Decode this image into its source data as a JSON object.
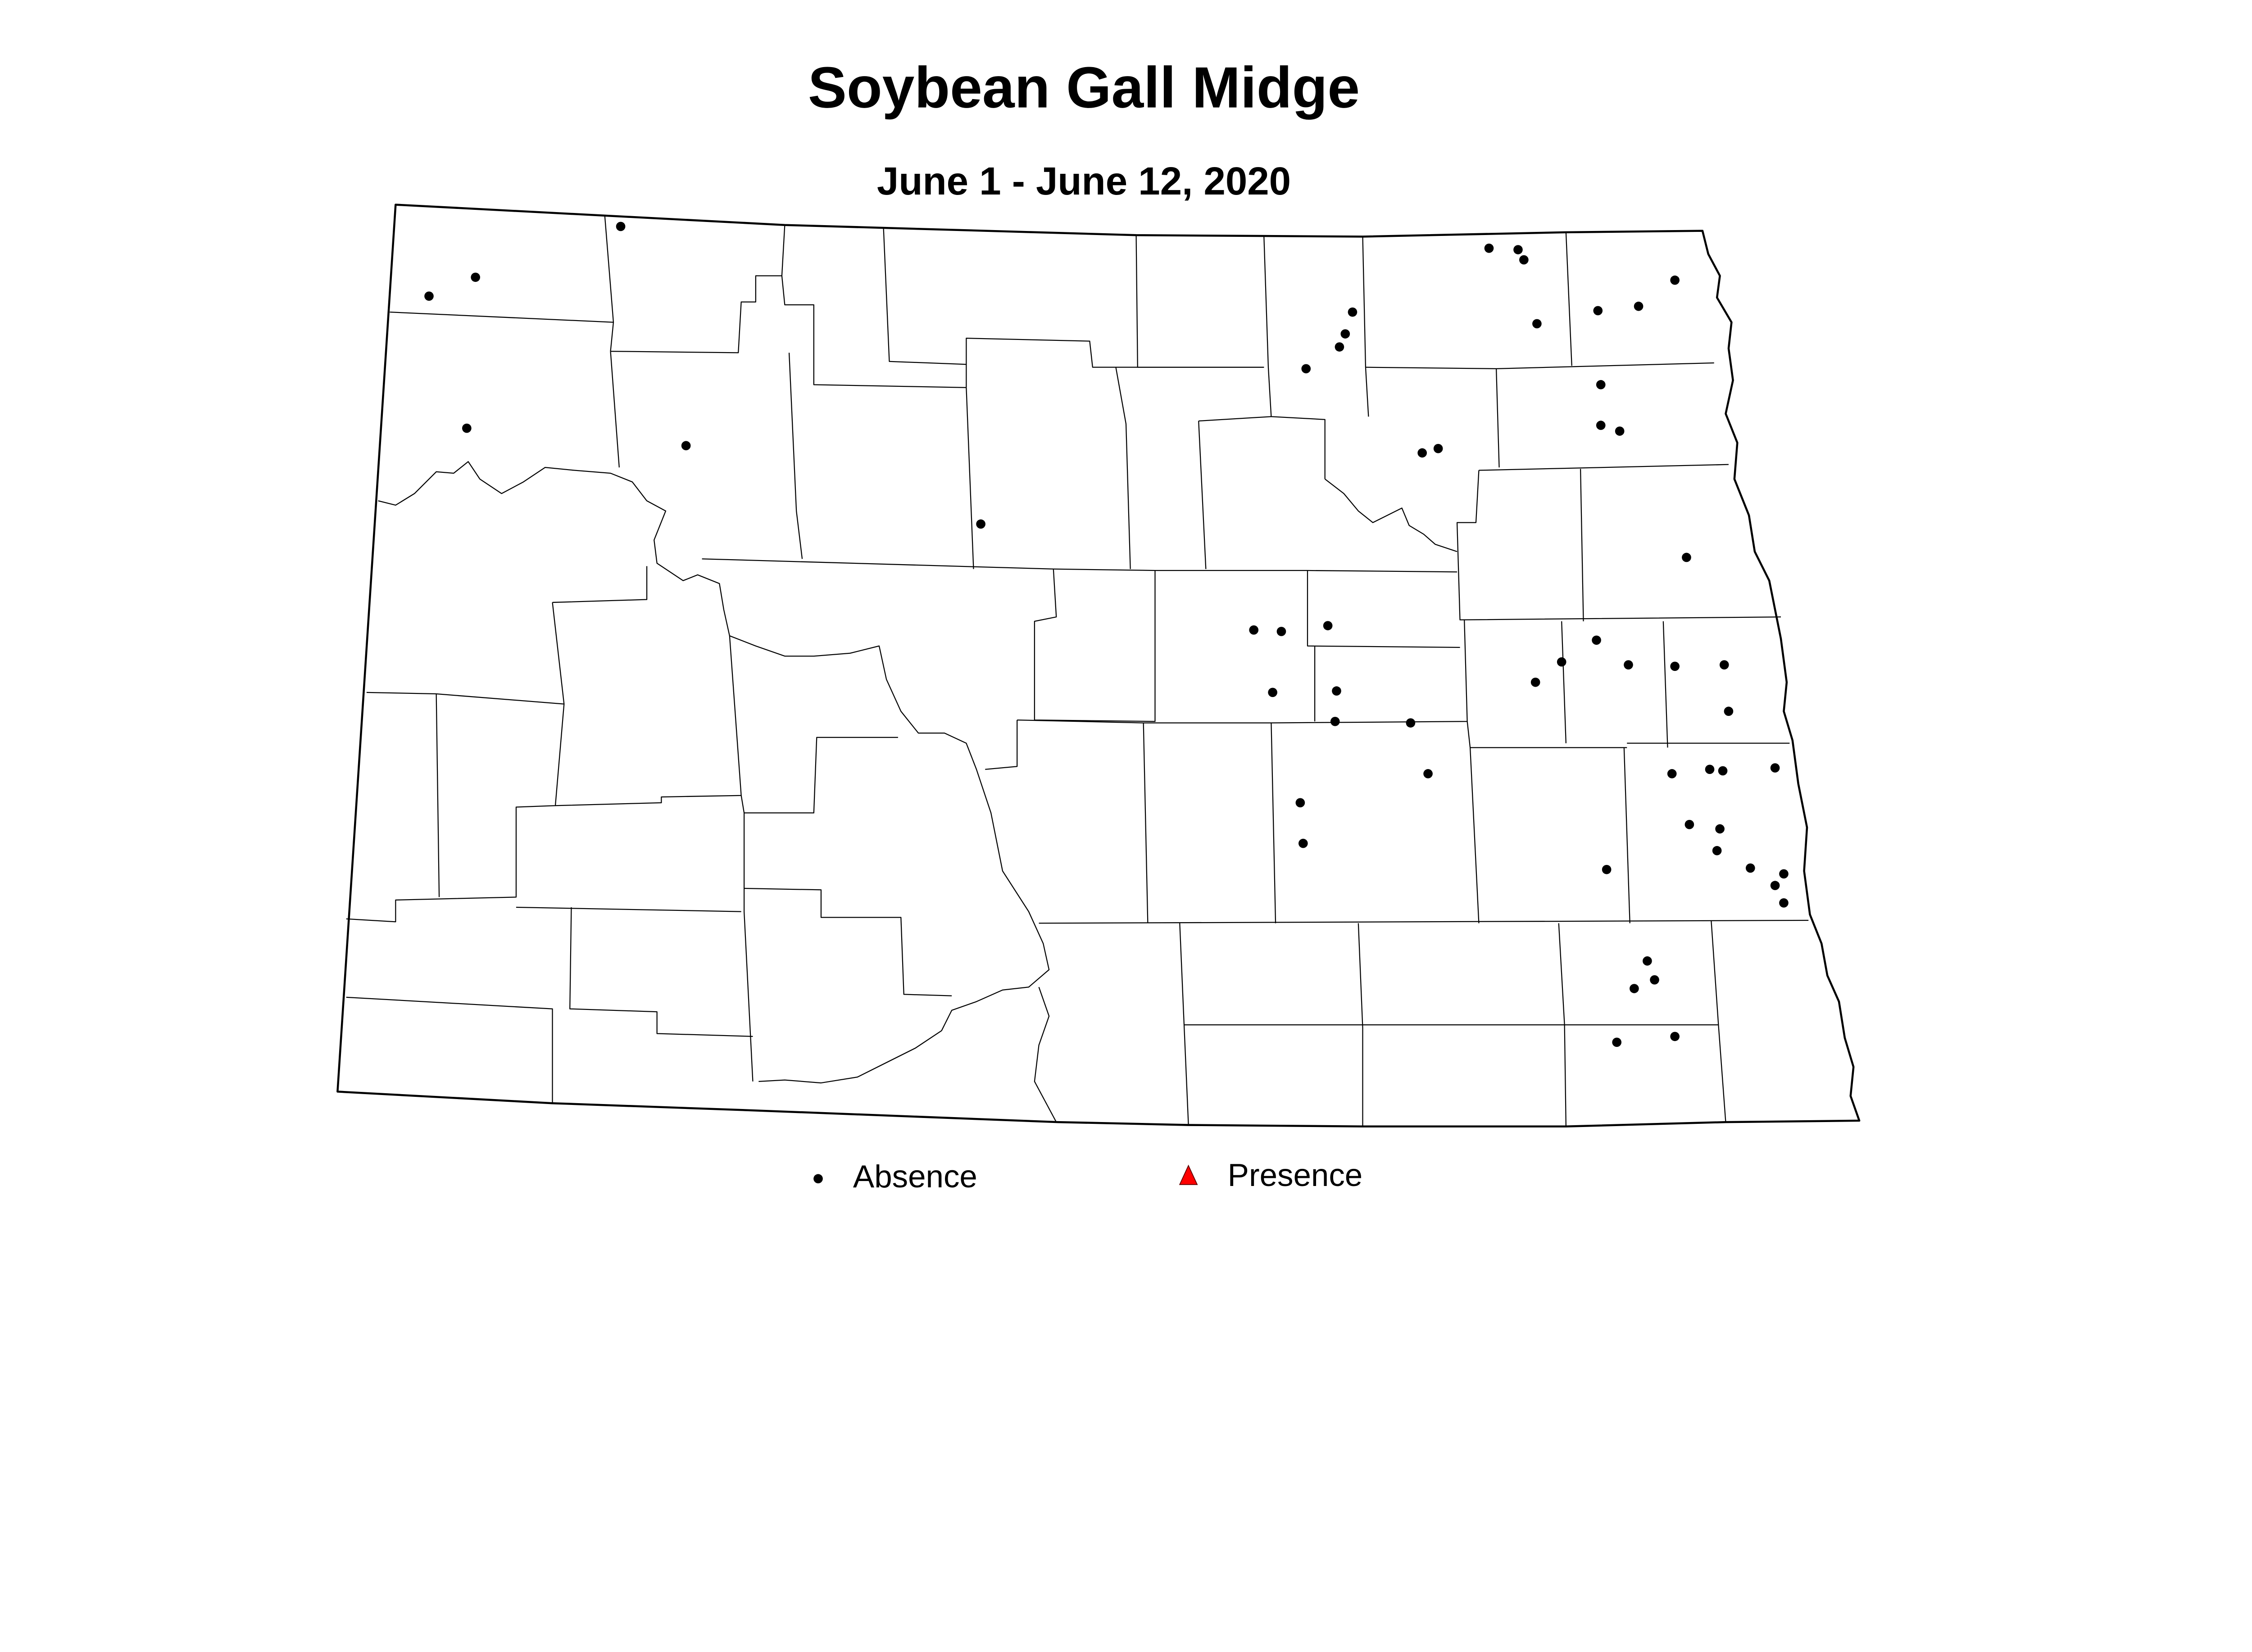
{
  "map": {
    "title": "Soybean Gall Midge",
    "subtitle": "June 1 - June 12, 2020",
    "legend": [
      {
        "label": "Absence",
        "symbol": "dot",
        "color": "#000000"
      },
      {
        "label": "Presence",
        "symbol": "triangle",
        "color": "#ff0000"
      }
    ]
  }
}
